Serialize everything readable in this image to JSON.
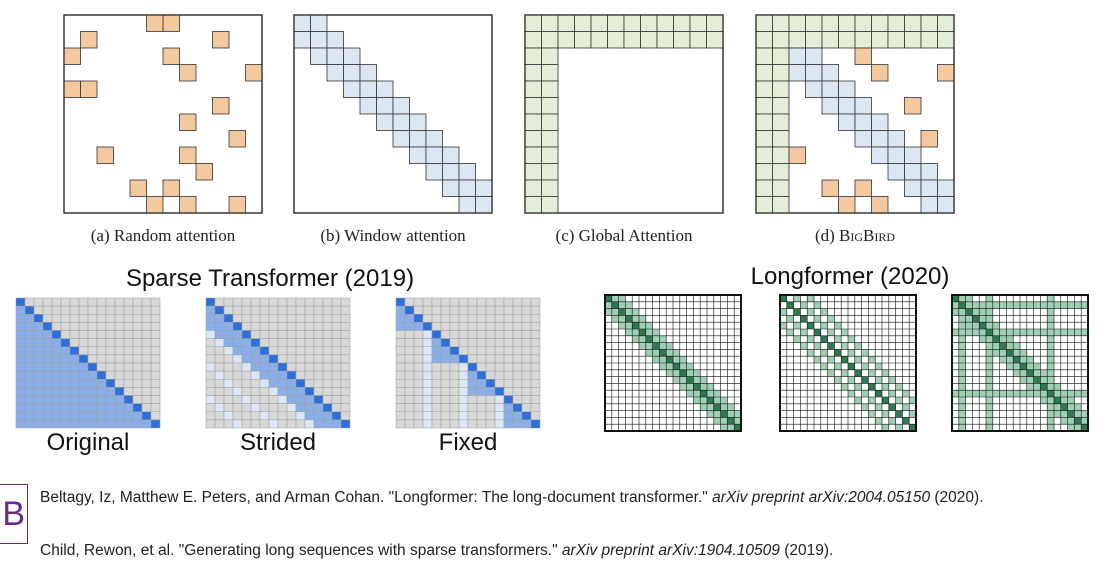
{
  "bigbird": {
    "captions": [
      {
        "prefix": "(a) Random attention",
        "sc": ""
      },
      {
        "prefix": "(b) Window attention",
        "sc": ""
      },
      {
        "prefix": "(c) Global Attention",
        "sc": ""
      },
      {
        "prefix": "(d) ",
        "sc": "BigBird"
      }
    ]
  },
  "sparse_transformer": {
    "title": "Sparse Transformer (2019)",
    "labels": [
      "Original",
      "Strided",
      "Fixed"
    ]
  },
  "longformer": {
    "title": "Longformer (2020)"
  },
  "references": [
    {
      "text": "Beltagy, Iz, Matthew E. Peters, and Arman Cohan. \"Longformer: The long-document transformer.\" ",
      "italic": "arXiv preprint arXiv:2004.05150",
      "tail": " (2020)."
    },
    {
      "text": "Child, Rewon, et al. \"Generating long sequences with sparse transformers.\" ",
      "italic": "arXiv preprint arXiv:1904.10509",
      "tail": " (2019)."
    }
  ],
  "logo": {
    "glyph": "B"
  },
  "colors": {
    "random": "#f4c9a0",
    "window": "#dde6f3",
    "global": "#e3edd8",
    "sparse_bg": "#d8d8d8",
    "sparse_dark": "#2e6fd8",
    "sparse_light": "#8aaee8",
    "sparse_pale": "#dbe6f7",
    "long_dark": "#2d7a4f",
    "long_light": "#9fd0b5"
  }
}
